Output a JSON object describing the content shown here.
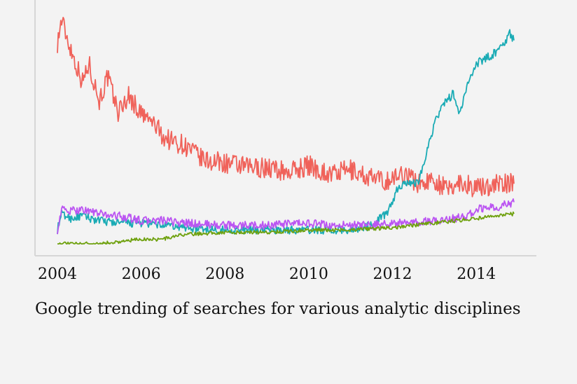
{
  "caption": "Google trending of searches for various analytic disciplines",
  "chart_data": {
    "type": "line",
    "title": "",
    "xlabel": "",
    "ylabel": "",
    "x_tick_labels": [
      "2004",
      "2006",
      "2008",
      "2010",
      "2012",
      "2014"
    ],
    "x_ticks": [
      2004,
      2006,
      2008,
      2010,
      2012,
      2014
    ],
    "xlim": [
      2003.5,
      2015.5
    ],
    "ylim": [
      0,
      100
    ],
    "grid": false,
    "legend": "none",
    "series": [
      {
        "color": "#f0625a",
        "x": [
          2004.0,
          2004.1,
          2004.25,
          2004.4,
          2004.6,
          2004.75,
          2005.0,
          2005.2,
          2005.45,
          2005.7,
          2006.0,
          2006.3,
          2006.55,
          2006.8,
          2007.0,
          2007.5,
          2008.0,
          2008.5,
          2009.0,
          2009.5,
          2010.0,
          2010.5,
          2011.0,
          2011.4,
          2011.8,
          2012.0,
          2012.3,
          2012.6,
          2013.0,
          2013.3,
          2013.6,
          2014.0,
          2014.5,
          2014.9
        ],
        "y": [
          87,
          97,
          88,
          80,
          70,
          78,
          62,
          72,
          57,
          64,
          56,
          52,
          46,
          44,
          43,
          36,
          35,
          33,
          33,
          31,
          34,
          30,
          32,
          29,
          27,
          28,
          31,
          26,
          28,
          23,
          27,
          24,
          26,
          26
        ]
      },
      {
        "color": "#1aabb5",
        "x": [
          2004.0,
          2004.1,
          2004.3,
          2004.6,
          2005.0,
          2005.5,
          2006.0,
          2006.5,
          2007.0,
          2008.0,
          2009.0,
          2010.0,
          2011.0,
          2011.5,
          2011.9,
          2012.1,
          2012.3,
          2012.6,
          2012.85,
          2013.0,
          2013.2,
          2013.45,
          2013.6,
          2013.85,
          2014.0,
          2014.2,
          2014.4,
          2014.6,
          2014.8,
          2014.9
        ],
        "y": [
          6,
          13,
          11,
          12,
          10,
          9,
          9,
          8,
          7,
          6,
          6,
          6,
          6,
          8,
          14,
          23,
          27,
          26,
          42,
          52,
          60,
          65,
          56,
          72,
          78,
          80,
          82,
          85,
          91,
          88
        ]
      },
      {
        "color": "#bb55f2",
        "x": [
          2004.0,
          2004.1,
          2004.3,
          2004.6,
          2005.0,
          2005.5,
          2006.0,
          2006.5,
          2007.0,
          2008.0,
          2009.0,
          2010.0,
          2010.5,
          2011.0,
          2011.5,
          2012.0,
          2012.5,
          2013.0,
          2013.5,
          2013.8,
          2014.0,
          2014.5,
          2014.9
        ],
        "y": [
          6,
          15,
          14,
          15,
          13,
          12,
          10,
          10,
          9,
          8,
          8,
          9,
          8,
          8,
          8,
          9,
          9,
          10,
          11,
          12,
          15,
          16,
          18
        ]
      },
      {
        "color": "#6fa10f",
        "x": [
          2004.0,
          2004.6,
          2005.0,
          2005.5,
          2006.0,
          2006.5,
          2007.0,
          2008.0,
          2009.0,
          2010.0,
          2011.0,
          2012.0,
          2012.5,
          2013.0,
          2013.5,
          2014.0,
          2014.5,
          2014.9
        ],
        "y": [
          0,
          0,
          0,
          1,
          2,
          2,
          4,
          5,
          5,
          6,
          6,
          7,
          8,
          9,
          10,
          11,
          12,
          13
        ]
      }
    ]
  }
}
